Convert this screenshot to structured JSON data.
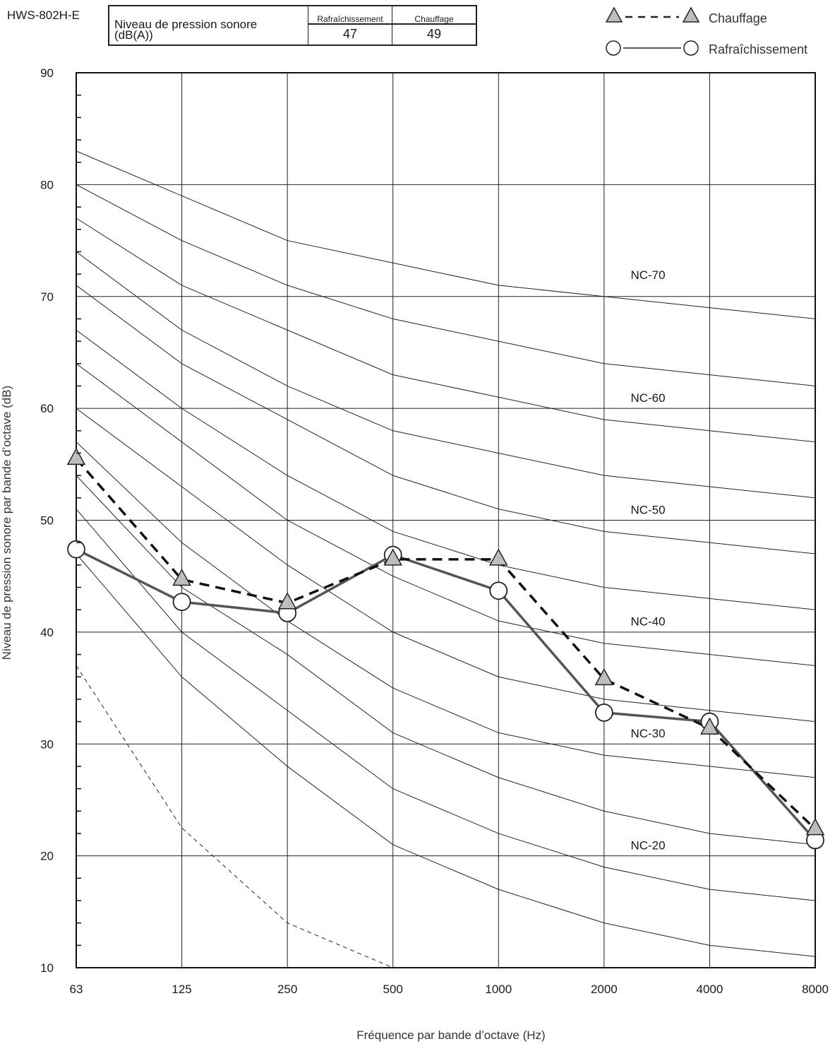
{
  "model": "HWS-802H-E",
  "table": {
    "label_line1": "Niveau de pression sonore",
    "label_line2": "(dB(A))",
    "cooling_header": "Rafraîchissement",
    "heating_header": "Chauffage",
    "cooling_value": "47",
    "heating_value": "49"
  },
  "legend": {
    "heating": "Chauffage",
    "cooling": "Rafraîchissement"
  },
  "chart_data": {
    "type": "line",
    "xlabel": "Fréquence par bande d’octave (Hz)",
    "ylabel": "Niveau de pression sonore par bande d’octave (dB)",
    "categories": [
      "63",
      "125",
      "250",
      "500",
      "1000",
      "2000",
      "4000",
      "8000"
    ],
    "ylim": [
      10,
      90
    ],
    "yticks": [
      10,
      20,
      30,
      40,
      50,
      60,
      70,
      80,
      90
    ],
    "grid": true,
    "legend_position": "top-right",
    "series": [
      {
        "name": "Chauffage",
        "marker": "triangle",
        "style": "dashed",
        "color": "#111111",
        "values": [
          55.5,
          44.7,
          42.6,
          46.5,
          46.5,
          35.8,
          31.4,
          22.4
        ]
      },
      {
        "name": "Rafraîchissement",
        "marker": "circle",
        "style": "solid",
        "color": "#555555",
        "values": [
          47.4,
          42.7,
          41.7,
          46.9,
          43.7,
          32.8,
          32.0,
          21.4
        ]
      }
    ],
    "nc_curves": [
      {
        "label": "NC-70",
        "values": [
          83,
          79,
          75,
          73,
          71,
          70,
          69,
          68
        ]
      },
      {
        "label": "",
        "values": [
          80,
          75,
          71,
          68,
          66,
          64,
          63,
          62
        ]
      },
      {
        "label": "NC-60",
        "values": [
          77,
          71,
          67,
          63,
          61,
          59,
          58,
          57
        ]
      },
      {
        "label": "",
        "values": [
          74,
          67,
          62,
          58,
          56,
          54,
          53,
          52
        ]
      },
      {
        "label": "NC-50",
        "values": [
          71,
          64,
          59,
          54,
          51,
          49,
          48,
          47
        ]
      },
      {
        "label": "",
        "values": [
          67,
          60,
          54,
          49,
          46,
          44,
          43,
          42
        ]
      },
      {
        "label": "NC-40",
        "values": [
          64,
          57,
          50,
          45,
          41,
          39,
          38,
          37
        ]
      },
      {
        "label": "",
        "values": [
          60,
          53,
          46,
          40,
          36,
          34,
          33,
          32
        ]
      },
      {
        "label": "NC-30",
        "values": [
          57,
          48,
          41,
          35,
          31,
          29,
          28,
          27
        ]
      },
      {
        "label": "",
        "values": [
          54,
          44,
          38,
          31,
          27,
          24,
          22,
          21
        ]
      },
      {
        "label": "NC-20",
        "values": [
          51,
          40,
          33,
          26,
          22,
          19,
          17,
          16
        ]
      },
      {
        "label": "",
        "values": [
          47,
          36,
          28,
          21,
          17,
          14,
          12,
          11
        ]
      }
    ],
    "hearing_threshold": [
      37,
      22.5,
      14,
      10
    ]
  }
}
